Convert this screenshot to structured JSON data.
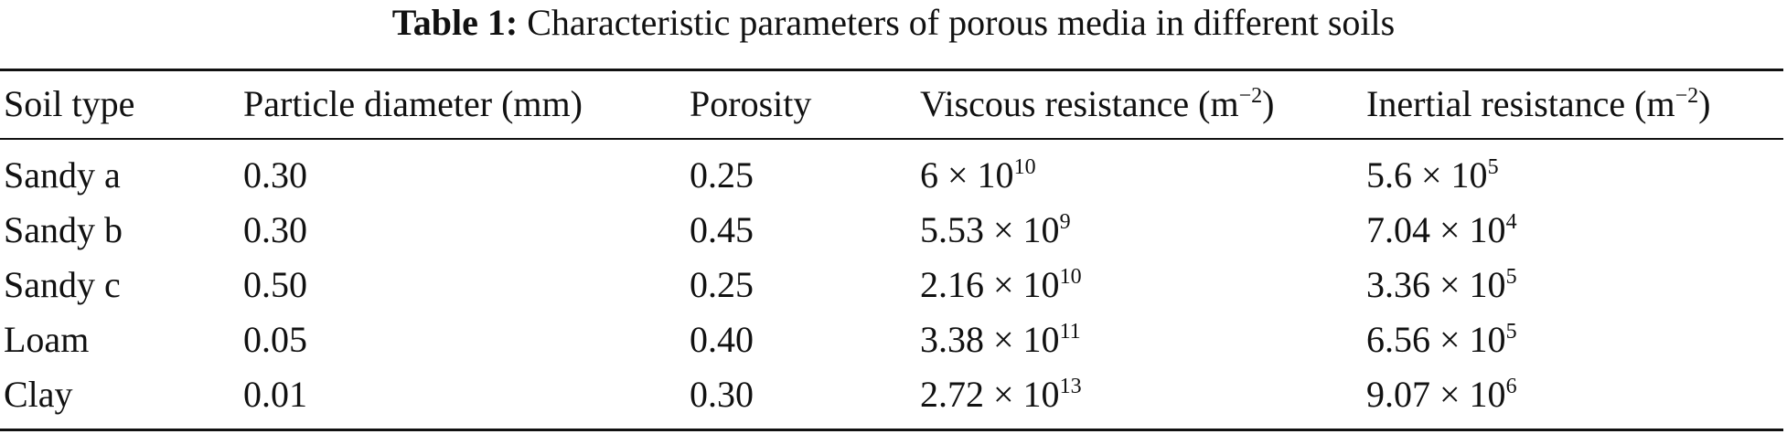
{
  "caption": {
    "label": "Table 1:",
    "text": "Characteristic parameters of porous media in different soils"
  },
  "table": {
    "headers": {
      "soil_type": "Soil type",
      "particle_diameter": "Particle diameter (mm)",
      "porosity": "Porosity",
      "viscous_base": "Viscous resistance (m",
      "viscous_exp": "−2",
      "viscous_close": ")",
      "inertial_base": "Inertial resistance (m",
      "inertial_exp": "−2",
      "inertial_close": ")"
    },
    "rows": [
      {
        "soil": "Sandy a",
        "diameter": "0.30",
        "porosity": "0.25",
        "viscous_mant": "6 × 10",
        "viscous_exp": "10",
        "inertial_mant": "5.6 × 10",
        "inertial_exp": "5"
      },
      {
        "soil": "Sandy b",
        "diameter": "0.30",
        "porosity": "0.45",
        "viscous_mant": "5.53 × 10",
        "viscous_exp": "9",
        "inertial_mant": "7.04 × 10",
        "inertial_exp": "4"
      },
      {
        "soil": "Sandy c",
        "diameter": "0.50",
        "porosity": "0.25",
        "viscous_mant": "2.16 × 10",
        "viscous_exp": "10",
        "inertial_mant": "3.36 × 10",
        "inertial_exp": "5"
      },
      {
        "soil": "Loam",
        "diameter": "0.05",
        "porosity": "0.40",
        "viscous_mant": "3.38 × 10",
        "viscous_exp": "11",
        "inertial_mant": "6.56 × 10",
        "inertial_exp": "5"
      },
      {
        "soil": "Clay",
        "diameter": "0.01",
        "porosity": "0.30",
        "viscous_mant": "2.72 × 10",
        "viscous_exp": "13",
        "inertial_mant": "9.07 × 10",
        "inertial_exp": "6"
      }
    ]
  }
}
